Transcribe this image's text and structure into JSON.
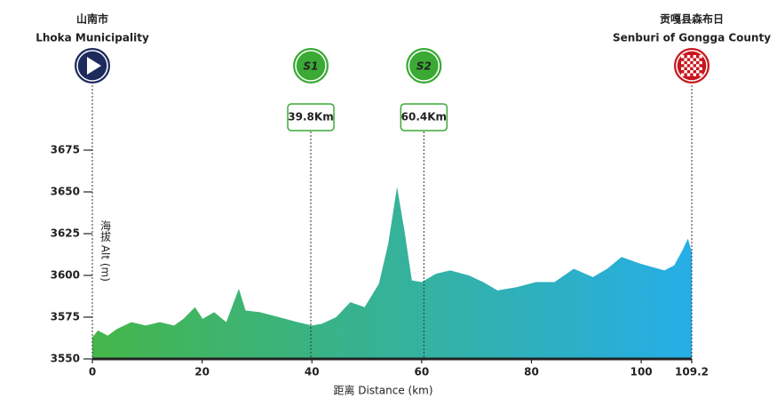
{
  "chart_data": {
    "type": "area",
    "x": [
      0,
      1.0,
      2.8,
      4.5,
      7.1,
      9.7,
      12.3,
      14.9,
      16.6,
      18.7,
      20.1,
      22.2,
      24.4,
      26.7,
      27.9,
      30.5,
      34.0,
      37.4,
      40.0,
      41.8,
      44.4,
      47.0,
      49.6,
      52.2,
      53.9,
      55.5,
      56.9,
      58.2,
      60.0,
      62.6,
      65.2,
      68.6,
      71.2,
      73.8,
      77.3,
      80.8,
      84.2,
      87.7,
      91.2,
      93.8,
      96.4,
      99.8,
      104.2,
      106.0,
      107.5,
      108.5,
      109.2
    ],
    "values": [
      3563,
      3567,
      3564,
      3568,
      3572,
      3570,
      3572,
      3570,
      3574,
      3581,
      3574,
      3578,
      3572,
      3592,
      3579,
      3578,
      3575,
      3572,
      3570,
      3571,
      3575,
      3584,
      3581,
      3595,
      3619,
      3653,
      3626,
      3597,
      3596,
      3601,
      3603,
      3600,
      3596,
      3591,
      3593,
      3596,
      3596,
      3604,
      3599,
      3604,
      3611,
      3607,
      3603,
      3606,
      3615,
      3622,
      3614
    ],
    "xlim": [
      0,
      109.2
    ],
    "ylim": [
      3550,
      3675
    ],
    "xticks": [
      0,
      20,
      40,
      60,
      80,
      100,
      109.2
    ],
    "yticks": [
      3550,
      3575,
      3600,
      3625,
      3650,
      3675
    ],
    "xlabel": "距离 Distance (km)",
    "ylabel": "海拔 Alt (m)",
    "gradient": [
      "#45b649",
      "#26aee8"
    ],
    "start": {
      "x": 0,
      "name": "山南市",
      "name_en": "Lhoka Municipality"
    },
    "finish": {
      "x": 109.2,
      "name": "贡嘎县森布日",
      "name_en": "Senburi of Gongga County"
    },
    "sprints": [
      {
        "x": 39.8,
        "icon": "S1",
        "label": "39.8Km"
      },
      {
        "x": 60.4,
        "icon": "S2",
        "label": "60.4Km"
      }
    ]
  }
}
